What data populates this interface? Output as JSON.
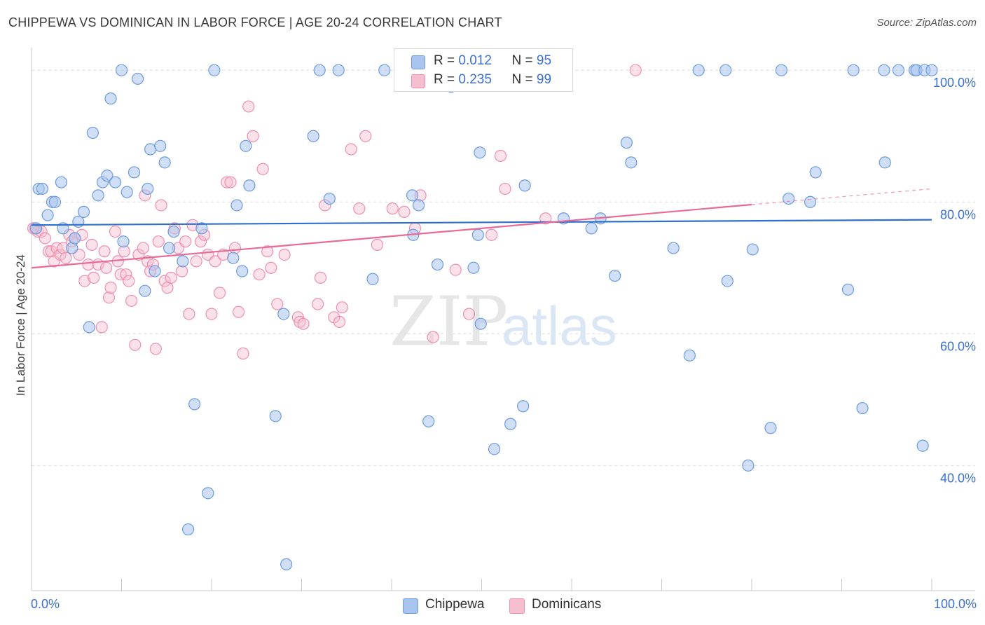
{
  "header": {
    "title": "CHIPPEWA VS DOMINICAN IN LABOR FORCE | AGE 20-24 CORRELATION CHART",
    "source": "Source: ZipAtlas.com"
  },
  "watermark": {
    "zip": "ZIP",
    "atlas": "atlas"
  },
  "legend_top": {
    "rows": [
      {
        "r_label": "R =",
        "r_value": "0.012",
        "n_label": "N =",
        "n_value": "95"
      },
      {
        "r_label": "R =",
        "r_value": "0.235",
        "n_label": "N =",
        "n_value": "99"
      }
    ]
  },
  "bottom_legend": {
    "series1": "Chippewa",
    "series2": "Dominicans"
  },
  "x_labels": {
    "left": "0.0%",
    "right": "100.0%"
  },
  "colors": {
    "blue_fill": "#a9c4ee",
    "blue_stroke": "#6b9be0",
    "blue_line": "#2f6fd0",
    "pink_fill": "#f6bfd0",
    "pink_stroke": "#ee8fae",
    "pink_line": "#e86a98",
    "axis_label": "#3b6fd1",
    "grid": "#dcdcdc"
  },
  "chart_data": {
    "type": "scatter",
    "title": "CHIPPEWA VS DOMINICAN IN LABOR FORCE | AGE 20-24 CORRELATION CHART",
    "xlabel": "",
    "ylabel": "In Labor Force | Age 20-24",
    "xlim": [
      0,
      100
    ],
    "ylim": [
      21,
      103
    ],
    "y_ticks": [
      {
        "value": 100,
        "label": "100.0%"
      },
      {
        "value": 80,
        "label": "80.0%"
      },
      {
        "value": 60,
        "label": "60.0%"
      },
      {
        "value": 40,
        "label": "40.0%"
      }
    ],
    "series": [
      {
        "name": "Chippewa",
        "R": 0.012,
        "N": 95,
        "trend": {
          "x0": 0,
          "y0": 76.5,
          "x1": 100,
          "y1": 77.3,
          "dash_from": null
        },
        "points": [
          [
            0.5,
            76
          ],
          [
            0.8,
            82
          ],
          [
            1.2,
            82
          ],
          [
            1.8,
            78
          ],
          [
            2.3,
            80
          ],
          [
            2.6,
            80
          ],
          [
            3.3,
            83
          ],
          [
            3.5,
            76
          ],
          [
            4.5,
            73
          ],
          [
            4.8,
            74.5
          ],
          [
            5.2,
            77
          ],
          [
            5.8,
            78.5
          ],
          [
            6.4,
            61
          ],
          [
            6.8,
            90.5
          ],
          [
            7.4,
            81
          ],
          [
            7.9,
            83
          ],
          [
            8.4,
            84
          ],
          [
            8.8,
            95.7
          ],
          [
            9.3,
            83
          ],
          [
            10,
            100
          ],
          [
            10.2,
            74
          ],
          [
            10.6,
            81.5
          ],
          [
            11.4,
            84.5
          ],
          [
            11.8,
            98.7
          ],
          [
            12.6,
            66.5
          ],
          [
            12.9,
            82
          ],
          [
            13.2,
            88
          ],
          [
            13.7,
            69.5
          ],
          [
            14.3,
            88.5
          ],
          [
            14.8,
            86
          ],
          [
            15.3,
            73
          ],
          [
            15.8,
            75.5
          ],
          [
            16.8,
            71
          ],
          [
            17.4,
            30.3
          ],
          [
            18.1,
            49.3
          ],
          [
            18.9,
            76
          ],
          [
            19.6,
            35.8
          ],
          [
            20.3,
            100
          ],
          [
            22.4,
            71.5
          ],
          [
            22.8,
            79.5
          ],
          [
            23.4,
            69.5
          ],
          [
            23.8,
            88.5
          ],
          [
            24.2,
            82.5
          ],
          [
            27.1,
            47.5
          ],
          [
            28,
            63
          ],
          [
            28.3,
            25
          ],
          [
            31.3,
            90
          ],
          [
            32,
            100
          ],
          [
            33.1,
            80.5
          ],
          [
            34.1,
            100
          ],
          [
            37.9,
            68.3
          ],
          [
            39.2,
            100
          ],
          [
            42.4,
            75
          ],
          [
            42.3,
            81
          ],
          [
            43,
            79.5
          ],
          [
            44.1,
            46.7
          ],
          [
            45.1,
            70.5
          ],
          [
            46.6,
            97.5
          ],
          [
            49.1,
            70
          ],
          [
            49.6,
            75
          ],
          [
            49.9,
            61.5
          ],
          [
            49.8,
            87.5
          ],
          [
            51.4,
            42.5
          ],
          [
            53.2,
            46.3
          ],
          [
            54.6,
            49
          ],
          [
            54.8,
            82.5
          ],
          [
            59.1,
            77.5
          ],
          [
            62.2,
            76
          ],
          [
            63.2,
            77.5
          ],
          [
            64.8,
            68.8
          ],
          [
            66.1,
            89
          ],
          [
            66.6,
            86
          ],
          [
            71.3,
            73
          ],
          [
            73.1,
            56.7
          ],
          [
            74.1,
            100
          ],
          [
            77.1,
            100
          ],
          [
            77.3,
            68
          ],
          [
            79.6,
            40
          ],
          [
            80.1,
            72.8
          ],
          [
            82.1,
            45.7
          ],
          [
            83.3,
            100
          ],
          [
            84.1,
            80.5
          ],
          [
            86.5,
            80
          ],
          [
            87.1,
            84.5
          ],
          [
            90.7,
            66.7
          ],
          [
            91.3,
            100
          ],
          [
            92.3,
            48.7
          ],
          [
            94.7,
            100
          ],
          [
            94.8,
            86
          ],
          [
            96.3,
            100
          ],
          [
            98.1,
            100
          ],
          [
            98.3,
            100
          ],
          [
            99,
            43
          ],
          [
            99.2,
            100
          ],
          [
            100,
            100
          ]
        ]
      },
      {
        "name": "Dominicans",
        "R": 0.235,
        "N": 99,
        "trend": {
          "x0": 0,
          "y0": 70,
          "x1": 100,
          "y1": 82,
          "dash_from": 80
        },
        "points": [
          [
            0.4,
            76
          ],
          [
            0.7,
            75.5
          ],
          [
            1.1,
            75.5
          ],
          [
            1.5,
            74.5
          ],
          [
            1.9,
            72.5
          ],
          [
            2.2,
            72.5
          ],
          [
            2.5,
            71
          ],
          [
            2.8,
            73
          ],
          [
            3.2,
            72
          ],
          [
            3.5,
            73
          ],
          [
            3.8,
            71.5
          ],
          [
            4.2,
            75
          ],
          [
            4.5,
            74
          ],
          [
            4.8,
            74.5
          ],
          [
            5.3,
            72
          ],
          [
            5.6,
            75
          ],
          [
            5.9,
            68
          ],
          [
            6.3,
            70.5
          ],
          [
            6.7,
            73.5
          ],
          [
            6.9,
            68.5
          ],
          [
            7.4,
            70.5
          ],
          [
            7.8,
            61
          ],
          [
            8.1,
            72.5
          ],
          [
            8.3,
            70
          ],
          [
            8.6,
            65.5
          ],
          [
            8.8,
            67
          ],
          [
            9.3,
            75.5
          ],
          [
            9.6,
            71
          ],
          [
            9.9,
            69
          ],
          [
            10.3,
            72.5
          ],
          [
            10.5,
            69
          ],
          [
            10.8,
            68
          ],
          [
            11.1,
            65
          ],
          [
            11.5,
            58.3
          ],
          [
            11.9,
            72
          ],
          [
            12.4,
            73
          ],
          [
            12.6,
            81
          ],
          [
            12.9,
            71
          ],
          [
            13.2,
            69.5
          ],
          [
            13.5,
            70.5
          ],
          [
            13.8,
            57.7
          ],
          [
            14.1,
            74
          ],
          [
            14.4,
            79.5
          ],
          [
            14.8,
            68
          ],
          [
            15.1,
            67
          ],
          [
            15.5,
            68.5
          ],
          [
            15.9,
            76
          ],
          [
            16.3,
            73
          ],
          [
            16.7,
            69.5
          ],
          [
            17.1,
            74
          ],
          [
            17.5,
            63
          ],
          [
            17.9,
            76.5
          ],
          [
            18.3,
            71
          ],
          [
            18.8,
            74
          ],
          [
            19.2,
            75
          ],
          [
            19.6,
            72
          ],
          [
            20,
            63
          ],
          [
            20.4,
            71
          ],
          [
            20.9,
            66.2
          ],
          [
            21.3,
            72
          ],
          [
            21.7,
            83
          ],
          [
            22.1,
            83
          ],
          [
            22.6,
            73
          ],
          [
            23,
            63.3
          ],
          [
            23.5,
            57
          ],
          [
            24.1,
            94.5
          ],
          [
            24.6,
            90
          ],
          [
            25.3,
            69
          ],
          [
            25.7,
            85
          ],
          [
            26.2,
            72.5
          ],
          [
            26.6,
            70
          ],
          [
            27.3,
            64.5
          ],
          [
            28.1,
            72
          ],
          [
            29.6,
            62.5
          ],
          [
            29.8,
            61.8
          ],
          [
            30.2,
            61.5
          ],
          [
            31.8,
            64.5
          ],
          [
            32.1,
            68.5
          ],
          [
            32.6,
            79.5
          ],
          [
            33.6,
            62.5
          ],
          [
            34.5,
            64
          ],
          [
            34.2,
            61.8
          ],
          [
            35.5,
            88
          ],
          [
            36.4,
            79
          ],
          [
            37.1,
            90
          ],
          [
            38.4,
            73.5
          ],
          [
            40.1,
            79
          ],
          [
            41.4,
            78.5
          ],
          [
            42.6,
            76
          ],
          [
            43.2,
            81
          ],
          [
            44.6,
            59.5
          ],
          [
            47.1,
            69.7
          ],
          [
            48.6,
            63
          ],
          [
            51.1,
            75
          ],
          [
            52.1,
            87
          ],
          [
            52.6,
            82
          ],
          [
            57.1,
            77.5
          ],
          [
            67.1,
            100
          ],
          [
            0.2,
            76
          ]
        ]
      }
    ]
  }
}
